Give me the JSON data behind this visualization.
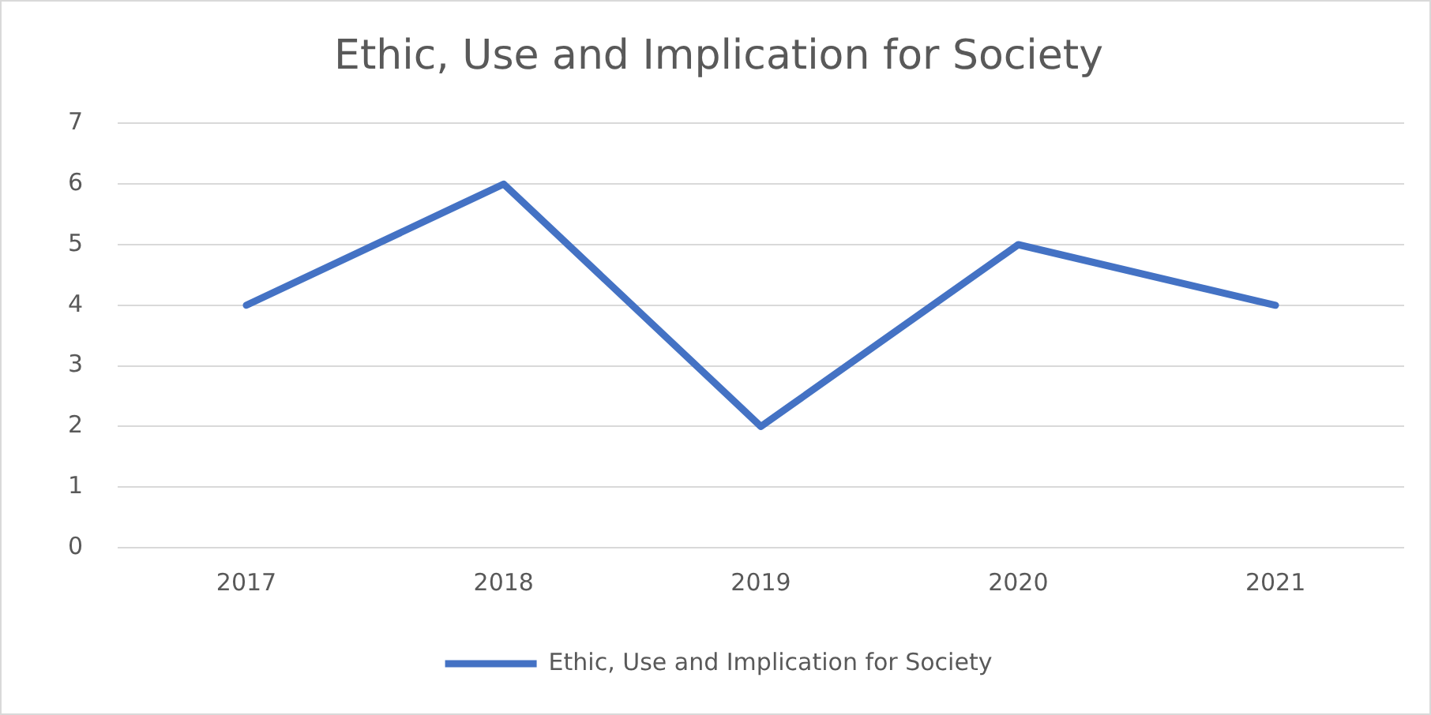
{
  "chart_data": {
    "type": "line",
    "title": "Ethic, Use and Implication for Society",
    "categories": [
      "2017",
      "2018",
      "2019",
      "2020",
      "2021"
    ],
    "series": [
      {
        "name": "Ethic, Use and Implication for Society",
        "color": "#4472c4",
        "values": [
          4,
          6,
          2,
          5,
          4
        ]
      }
    ],
    "ylim": [
      0,
      7
    ],
    "yticks": [
      0,
      1,
      2,
      3,
      4,
      5,
      6,
      7
    ],
    "grid": "y",
    "legend": "bottom",
    "marker": "none",
    "line_style": "solid"
  }
}
